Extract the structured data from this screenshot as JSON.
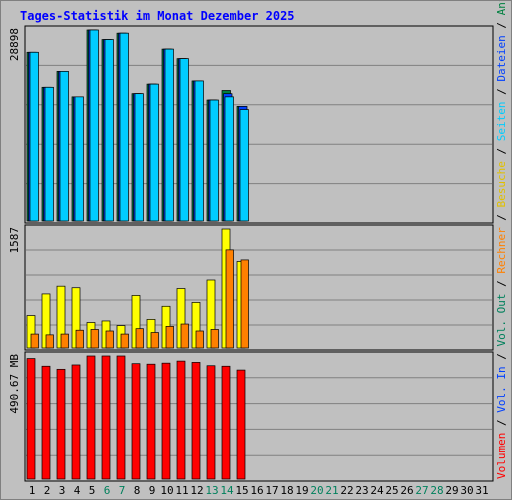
{
  "chart_data": {
    "type": "bar",
    "title": "Tages-Statistik im Monat Dezember 2025",
    "categories": [
      "1",
      "2",
      "3",
      "4",
      "5",
      "6",
      "7",
      "8",
      "9",
      "10",
      "11",
      "12",
      "13",
      "14",
      "15",
      "16",
      "17",
      "18",
      "19",
      "20",
      "21",
      "22",
      "23",
      "24",
      "25",
      "26",
      "27",
      "28",
      "29",
      "30",
      "31"
    ],
    "weekend_days": [
      "6",
      "7",
      "13",
      "14",
      "20",
      "21",
      "27",
      "28"
    ],
    "colors": {
      "title": "#0000ff",
      "panel_bg": "#c0c0c0",
      "frame": "#000000",
      "gridline": "#808080",
      "weekday_label": "#000000",
      "weekend_label": "#00805c"
    },
    "panels": [
      {
        "max_label": "28898",
        "series": [
          {
            "name": "Anfragen",
            "color": "#008040",
            "values": [
              26500,
              21000,
              23500,
              19500,
              30000,
              28500,
              29500,
              20000,
              21500,
              27000,
              25500,
              22000,
              19000,
              20500,
              18000,
              0,
              0,
              0,
              0,
              0,
              0,
              0,
              0,
              0,
              0,
              0,
              0,
              0,
              0,
              0,
              0
            ]
          },
          {
            "name": "Dateien",
            "color": "#0040ff",
            "values": [
              26500,
              21000,
              23500,
              19500,
              30000,
              28500,
              29500,
              20000,
              21500,
              27000,
              25500,
              22000,
              19000,
              20000,
              18000,
              0,
              0,
              0,
              0,
              0,
              0,
              0,
              0,
              0,
              0,
              0,
              0,
              0,
              0,
              0,
              0
            ]
          },
          {
            "name": "Seiten",
            "color": "#00ccff",
            "values": [
              26500,
              21000,
              23500,
              19500,
              30000,
              28500,
              29500,
              20000,
              21500,
              27000,
              25500,
              22000,
              19000,
              19500,
              17500,
              0,
              0,
              0,
              0,
              0,
              0,
              0,
              0,
              0,
              0,
              0,
              0,
              0,
              0,
              0,
              0
            ]
          }
        ]
      },
      {
        "max_label": "1587",
        "series": [
          {
            "name": "Besuche",
            "color": "#ffff00",
            "values": [
              420,
              700,
              800,
              780,
              330,
              350,
              290,
              680,
              370,
              540,
              770,
              590,
              880,
              1540,
              1120,
              0,
              0,
              0,
              0,
              0,
              0,
              0,
              0,
              0,
              0,
              0,
              0,
              0,
              0,
              0,
              0
            ]
          },
          {
            "name": "Rechner",
            "color": "#ff8000",
            "values": [
              180,
              170,
              180,
              230,
              240,
              220,
              180,
              250,
              200,
              280,
              310,
              220,
              240,
              1270,
              1140,
              0,
              0,
              0,
              0,
              0,
              0,
              0,
              0,
              0,
              0,
              0,
              0,
              0,
              0,
              0,
              0
            ]
          }
        ]
      },
      {
        "max_label": "490.67 MB",
        "series": [
          {
            "name": "Volumen",
            "color": "#ff0000",
            "values": [
              470,
              440,
              428,
              445,
              480,
              480,
              480,
              450,
              448,
              452,
              460,
              455,
              442,
              440,
              425,
              0,
              0,
              0,
              0,
              0,
              0,
              0,
              0,
              0,
              0,
              0,
              0,
              0,
              0,
              0,
              0
            ]
          }
        ]
      }
    ],
    "legend_right": [
      {
        "text": "Volumen",
        "color": "#ff0000"
      },
      {
        "text": "/",
        "color": "#000000"
      },
      {
        "text": "Vol. In",
        "color": "#0040ff"
      },
      {
        "text": "/",
        "color": "#000000"
      },
      {
        "text": "Vol. Out",
        "color": "#00805c"
      },
      {
        "text": "/",
        "color": "#000000"
      },
      {
        "text": "Rechner",
        "color": "#ff8000"
      },
      {
        "text": "/",
        "color": "#000000"
      },
      {
        "text": "Besuche",
        "color": "#e0c000"
      },
      {
        "text": "/",
        "color": "#000000"
      },
      {
        "text": "Seiten",
        "color": "#00ccff"
      },
      {
        "text": "/",
        "color": "#000000"
      },
      {
        "text": "Dateien",
        "color": "#0040ff"
      },
      {
        "text": "/",
        "color": "#000000"
      },
      {
        "text": "Anfragen",
        "color": "#008040"
      }
    ]
  }
}
